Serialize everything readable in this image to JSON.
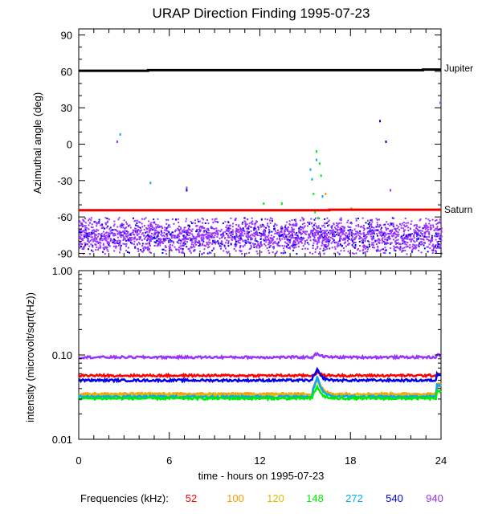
{
  "title": "URAP Direction Finding  1995-07-23",
  "footer": {
    "label": "Frequencies (kHz):",
    "items": [
      {
        "value": "52",
        "color": "#ff0000"
      },
      {
        "value": "100",
        "color": "#ff9900"
      },
      {
        "value": "120",
        "color": "#e6b800"
      },
      {
        "value": "148",
        "color": "#00ee00"
      },
      {
        "value": "272",
        "color": "#00aaff"
      },
      {
        "value": "540",
        "color": "#0000ee"
      },
      {
        "value": "940",
        "color": "#9933ff"
      }
    ]
  },
  "chart_data": [
    {
      "type": "scatter",
      "title": "URAP Direction Finding  1995-07-23",
      "ylabel": "Azimuthal angle (deg)",
      "xlabel": "",
      "xlim": [
        0,
        24
      ],
      "ylim": [
        -93,
        95
      ],
      "xticks": [
        0,
        6,
        12,
        18,
        24
      ],
      "yticks": [
        90,
        60,
        30,
        0,
        -30,
        -60,
        -90
      ],
      "reference_lines": [
        {
          "name": "Jupiter",
          "color": "#000000",
          "points": [
            [
              0,
              60.5
            ],
            [
              4.6,
              60.5
            ],
            [
              4.6,
              61
            ],
            [
              22.8,
              61
            ],
            [
              22.8,
              61.5
            ],
            [
              24,
              61.5
            ]
          ]
        },
        {
          "name": "Saturn",
          "color": "#ee0000",
          "points": [
            [
              0,
              -54.5
            ],
            [
              16.6,
              -54.5
            ],
            [
              16.6,
              -54
            ],
            [
              24,
              -54
            ]
          ]
        }
      ],
      "background_band": {
        "color_primary": "#9933ff",
        "color_secondary": "#0000ee",
        "x_range": [
          0,
          24
        ],
        "center": -75,
        "spread": 7,
        "outer": [
          -90,
          -60
        ]
      },
      "outlier_points": [
        {
          "x": 2.5,
          "y": 3,
          "color": "#9933ff"
        },
        {
          "x": 2.7,
          "y": 9,
          "color": "#00aaff"
        },
        {
          "x": 4.7,
          "y": -31,
          "color": "#00aaff"
        },
        {
          "x": 7.1,
          "y": -35,
          "color": "#9933ff"
        },
        {
          "x": 7.1,
          "y": -37,
          "color": "#0000ee"
        },
        {
          "x": 12.2,
          "y": -48,
          "color": "#00ee00"
        },
        {
          "x": 13.4,
          "y": -48,
          "color": "#00ee00"
        },
        {
          "x": 15.3,
          "y": -20,
          "color": "#00aaff"
        },
        {
          "x": 15.4,
          "y": -28,
          "color": "#00aaff"
        },
        {
          "x": 15.5,
          "y": -40,
          "color": "#00ee00"
        },
        {
          "x": 15.6,
          "y": -55,
          "color": "#00ee00"
        },
        {
          "x": 15.7,
          "y": -5,
          "color": "#00ee00"
        },
        {
          "x": 15.7,
          "y": -12,
          "color": "#00aaff"
        },
        {
          "x": 15.8,
          "y": -60,
          "color": "#00ee00"
        },
        {
          "x": 15.9,
          "y": -15,
          "color": "#00ee00"
        },
        {
          "x": 16.0,
          "y": -25,
          "color": "#00ee00"
        },
        {
          "x": 16.1,
          "y": -42,
          "color": "#00aaff"
        },
        {
          "x": 16.3,
          "y": -40,
          "color": "#ff9900"
        },
        {
          "x": 18.0,
          "y": -52,
          "color": "#ff9900"
        },
        {
          "x": 19.9,
          "y": 20,
          "color": "#0000ee"
        },
        {
          "x": 20.3,
          "y": 3,
          "color": "#0000ee"
        },
        {
          "x": 20.6,
          "y": -37,
          "color": "#9933ff"
        },
        {
          "x": 23.9,
          "y": 35,
          "color": "#9933ff"
        }
      ]
    },
    {
      "type": "line",
      "ylabel": "intensity (microvolt/sqrt(Hz))",
      "xlabel": "time - hours on 1995-07-23",
      "xlim": [
        0,
        24
      ],
      "ylim": [
        0.01,
        1.0
      ],
      "yscale": "log",
      "xticks": [
        0,
        6,
        12,
        18,
        24
      ],
      "yticks": [
        1.0,
        0.1,
        0.01
      ],
      "ytick_labels": [
        "1.00",
        "0.10",
        "0.01"
      ],
      "series": [
        {
          "name": "940",
          "color": "#9933ff",
          "base": 0.094
        },
        {
          "name": "52",
          "color": "#ff0000",
          "base": 0.057
        },
        {
          "name": "540",
          "color": "#0000ee",
          "base": 0.05
        },
        {
          "name": "100",
          "color": "#ff9900",
          "base": 0.0345
        },
        {
          "name": "120",
          "color": "#e6b800",
          "base": 0.0335
        },
        {
          "name": "272",
          "color": "#00aaff",
          "base": 0.032
        },
        {
          "name": "148",
          "color": "#00ee00",
          "base": 0.0305
        }
      ]
    }
  ],
  "body_labels": {
    "jupiter": "Jupiter",
    "saturn": "Saturn"
  }
}
